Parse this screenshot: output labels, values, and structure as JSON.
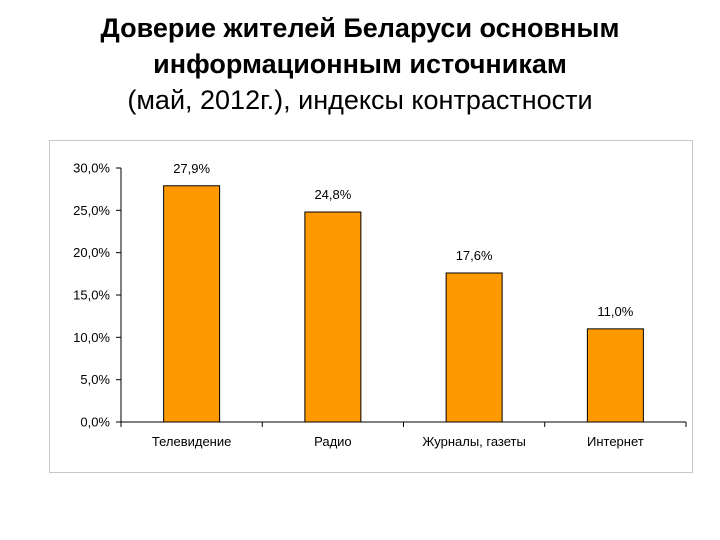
{
  "title": {
    "line1": "Доверие жителей Беларуси основным",
    "line2": "информационным источникам",
    "line3": "(май, 2012г.), индексы контрастности"
  },
  "chart_data": {
    "type": "bar",
    "categories": [
      "Телевидение",
      "Радио",
      "Журналы, газеты",
      "Интернет"
    ],
    "values": [
      27.9,
      24.8,
      17.6,
      11.0
    ],
    "data_labels": [
      "27,9%",
      "24,8%",
      "17,6%",
      "11,0%"
    ],
    "ylim": [
      0,
      30
    ],
    "yticks": [
      0,
      5,
      10,
      15,
      20,
      25,
      30
    ],
    "ytick_labels": [
      "0,0%",
      "5,0%",
      "10,0%",
      "15,0%",
      "20,0%",
      "25,0%",
      "30,0%"
    ],
    "bar_color": "#FF9900",
    "bar_stroke": "#000000",
    "grid": false,
    "legend": "none"
  }
}
